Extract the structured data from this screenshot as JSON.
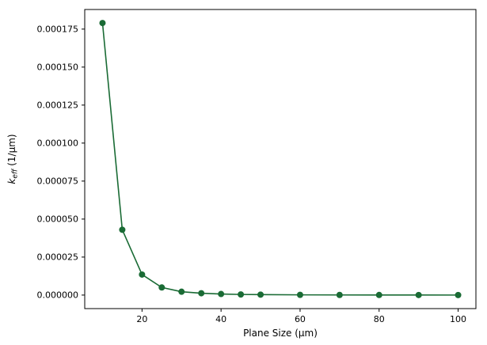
{
  "figure": {
    "background": "#ffffff"
  },
  "chart_data": {
    "type": "line",
    "title": "",
    "xlabel": "Plane Size (μm)",
    "ylabel": {
      "main": "k",
      "sub": "eff",
      "unit": " (1/μm)"
    },
    "x": [
      10,
      15,
      20,
      25,
      30,
      35,
      40,
      45,
      50,
      60,
      70,
      80,
      90,
      100
    ],
    "y": [
      0.000179,
      4.3e-05,
      1.35e-05,
      5e-06,
      2.2e-06,
      1.2e-06,
      7e-07,
      4e-07,
      3e-07,
      1.5e-07,
      8e-08,
      5e-08,
      3e-08,
      2e-08
    ],
    "xticks": [
      20,
      40,
      60,
      80,
      100
    ],
    "xtick_labels": [
      "20",
      "40",
      "60",
      "80",
      "100"
    ],
    "yticks": [
      0.0,
      2.5e-05,
      5e-05,
      7.5e-05,
      0.0001,
      0.000125,
      0.00015,
      0.000175
    ],
    "ytick_labels": [
      "0.000000",
      "0.000025",
      "0.000050",
      "0.000075",
      "0.000100",
      "0.000125",
      "0.000150",
      "0.000175"
    ],
    "xlim": [
      5.5,
      104.5
    ],
    "ylim": [
      -8.9e-06,
      0.0001879
    ],
    "line_color": "#1a6b35",
    "marker": "circle",
    "marker_radius": 4,
    "line_width": 1.6,
    "grid": false,
    "legend": null
  }
}
